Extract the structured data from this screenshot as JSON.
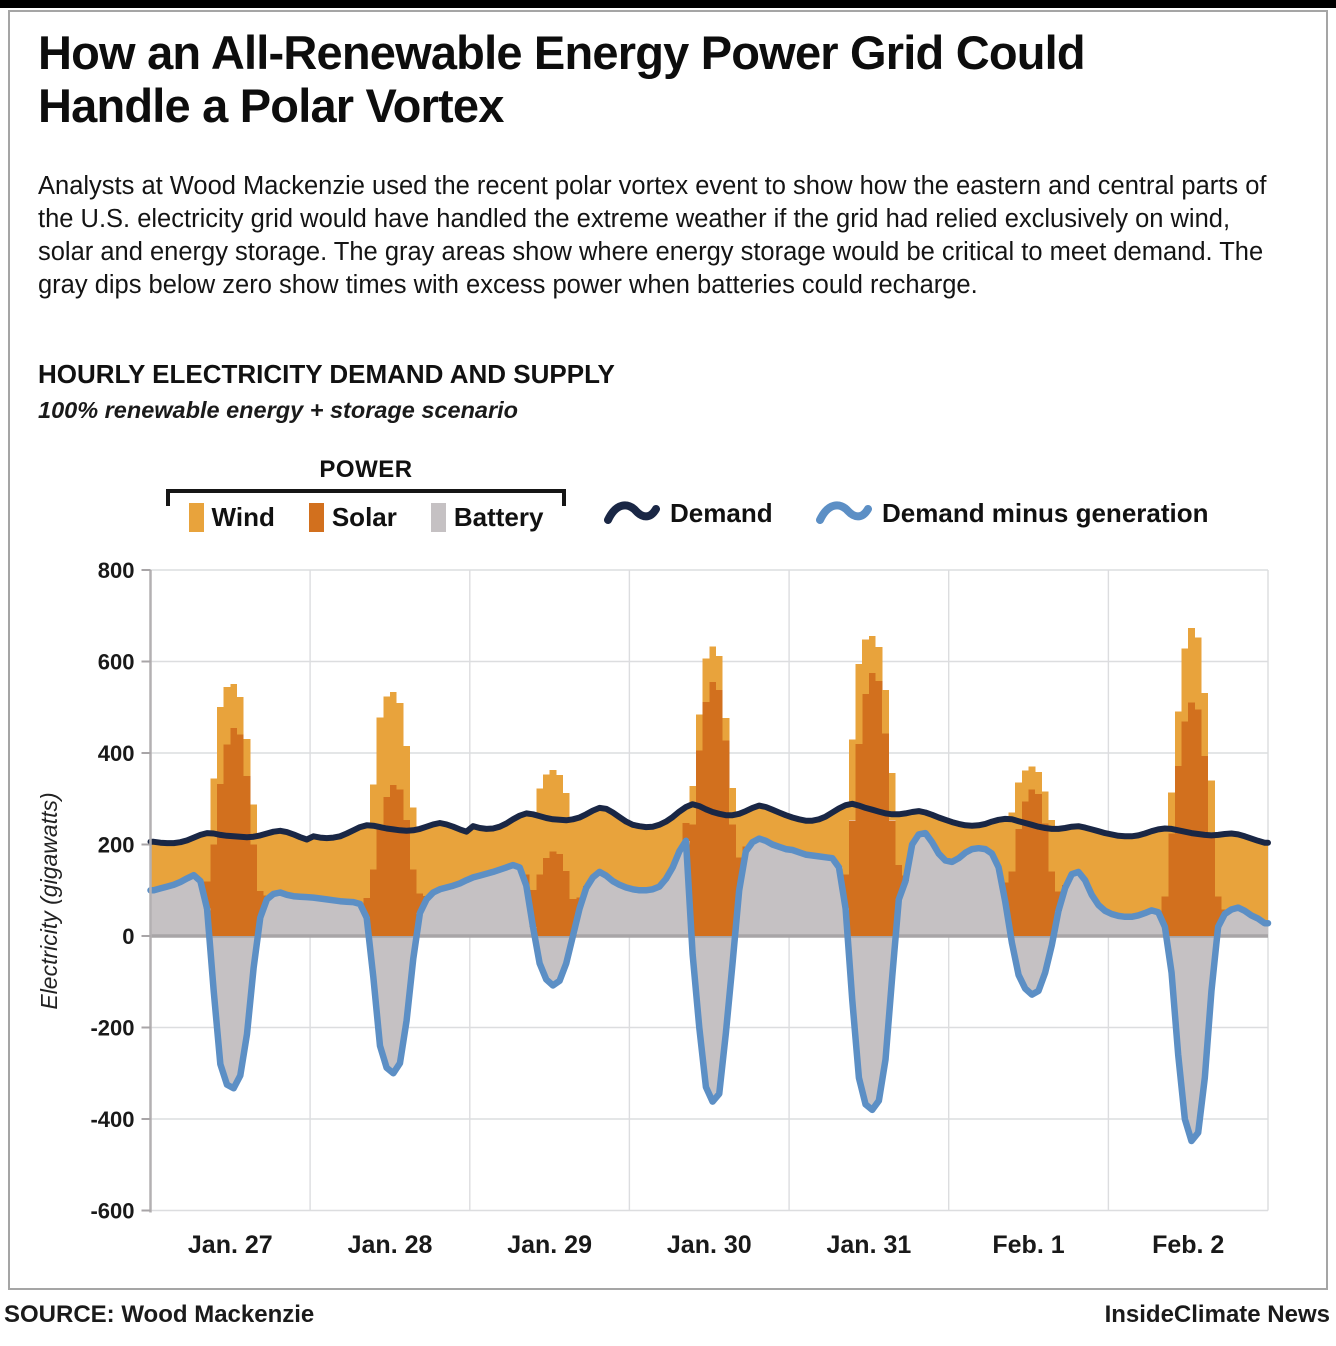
{
  "header": {
    "title": "How an All-Renewable Energy Power Grid Could Handle a Polar Vortex",
    "description": "Analysts at Wood Mackenzie used the recent polar vortex event to show how the eastern and central parts of the U.S. electricity grid would have handled the extreme weather if the grid had relied exclusively on wind, solar and energy storage. The gray areas show where energy storage would be critical to meet demand. The gray dips below zero show times with excess power when batteries could recharge."
  },
  "section": {
    "heading": "HOURLY ELECTRICITY DEMAND AND SUPPLY",
    "subheading": "100% renewable energy + storage scenario"
  },
  "legend": {
    "power_label": "POWER",
    "power_items": [
      {
        "label": "Wind",
        "color": "#e8a33c"
      },
      {
        "label": "Solar",
        "color": "#d2701e"
      },
      {
        "label": "Battery",
        "color": "#c5c1c3"
      }
    ],
    "line_items": [
      {
        "label": "Demand",
        "color": "#1a2745"
      },
      {
        "label": "Demand minus generation",
        "color": "#5c8fc5"
      }
    ]
  },
  "footer": {
    "source": "SOURCE: Wood Mackenzie",
    "credit": "InsideClimate News"
  },
  "chart_data": {
    "type": "combo: stacked hourly bars (battery, solar, wind) with overlaid lines (demand, demand minus generation)",
    "title": "HOURLY ELECTRICITY DEMAND AND SUPPLY",
    "subtitle": "100% renewable energy + storage scenario",
    "ylabel": "Electricity (gigawatts)",
    "ylim": [
      -600,
      800
    ],
    "yticks": [
      800,
      600,
      400,
      200,
      0,
      -200,
      -400,
      -600
    ],
    "x_categories": [
      "Jan. 27",
      "Jan. 28",
      "Jan. 29",
      "Jan. 30",
      "Jan. 31",
      "Feb. 1",
      "Feb. 2"
    ],
    "hours_per_day": 24,
    "grid": true,
    "legend_position": "top",
    "colors": {
      "wind": "#e8a33c",
      "solar": "#d2701e",
      "battery": "#c5c1c3",
      "demand": "#1a2745",
      "demand_minus_generation": "#5c8fc5"
    },
    "units": "gigawatts, hourly values",
    "series": {
      "demand": [
        206,
        204,
        203,
        203,
        205,
        209,
        215,
        221,
        225,
        224,
        221,
        219,
        218,
        217,
        216,
        217,
        220,
        224,
        228,
        230,
        227,
        222,
        216,
        211,
        218,
        215,
        214,
        215,
        218,
        224,
        231,
        238,
        242,
        241,
        238,
        235,
        233,
        231,
        230,
        231,
        234,
        239,
        244,
        247,
        244,
        239,
        233,
        228,
        240,
        236,
        234,
        235,
        239,
        246,
        255,
        263,
        268,
        266,
        262,
        258,
        255,
        254,
        253,
        255,
        259,
        266,
        274,
        280,
        278,
        270,
        260,
        250,
        243,
        240,
        238,
        239,
        243,
        250,
        260,
        272,
        282,
        288,
        284,
        277,
        271,
        267,
        264,
        264,
        267,
        273,
        280,
        285,
        282,
        276,
        270,
        264,
        259,
        255,
        252,
        252,
        255,
        261,
        270,
        279,
        286,
        289,
        285,
        280,
        276,
        272,
        268,
        266,
        266,
        268,
        271,
        273,
        270,
        265,
        259,
        254,
        249,
        245,
        242,
        241,
        242,
        245,
        250,
        254,
        256,
        255,
        251,
        247,
        243,
        239,
        236,
        234,
        234,
        236,
        239,
        240,
        237,
        233,
        229,
        225,
        222,
        219,
        218,
        218,
        220,
        224,
        229,
        233,
        235,
        234,
        231,
        228,
        225,
        223,
        221,
        220,
        221,
        223,
        224,
        222,
        218,
        213,
        208,
        204
      ],
      "demand_minus_generation": [
        100,
        104,
        108,
        112,
        118,
        126,
        133,
        120,
        60,
        -120,
        -280,
        -325,
        -333,
        -305,
        -215,
        -70,
        40,
        80,
        92,
        95,
        90,
        87,
        86,
        85,
        84,
        82,
        80,
        78,
        76,
        75,
        74,
        70,
        40,
        -90,
        -240,
        -288,
        -300,
        -278,
        -185,
        -50,
        50,
        80,
        95,
        102,
        106,
        110,
        115,
        122,
        128,
        132,
        136,
        140,
        145,
        150,
        155,
        150,
        110,
        20,
        -60,
        -95,
        -108,
        -98,
        -60,
        0,
        60,
        105,
        128,
        140,
        132,
        120,
        112,
        106,
        102,
        100,
        100,
        102,
        108,
        125,
        150,
        185,
        208,
        -40,
        -200,
        -330,
        -362,
        -345,
        -212,
        -60,
        100,
        185,
        205,
        213,
        208,
        200,
        195,
        190,
        188,
        183,
        178,
        176,
        174,
        172,
        170,
        150,
        60,
        -140,
        -310,
        -368,
        -380,
        -360,
        -270,
        -90,
        80,
        120,
        200,
        222,
        225,
        205,
        180,
        165,
        162,
        170,
        182,
        190,
        192,
        190,
        180,
        150,
        75,
        -15,
        -85,
        -115,
        -128,
        -120,
        -80,
        -20,
        55,
        105,
        135,
        140,
        122,
        90,
        68,
        55,
        48,
        44,
        42,
        42,
        45,
        50,
        56,
        52,
        20,
        -80,
        -260,
        -400,
        -448,
        -430,
        -310,
        -120,
        20,
        48,
        58,
        62,
        55,
        45,
        38,
        28
      ],
      "solar": [
        0,
        0,
        0,
        0,
        0,
        0,
        0,
        0,
        59,
        200,
        332,
        419,
        455,
        441,
        350,
        200,
        59,
        9,
        0,
        0,
        0,
        0,
        0,
        0,
        0,
        0,
        0,
        0,
        0,
        0,
        0,
        0,
        43,
        145,
        241,
        304,
        330,
        320,
        254,
        145,
        43,
        7,
        0,
        0,
        0,
        0,
        0,
        0,
        0,
        0,
        0,
        0,
        0,
        0,
        0,
        0,
        24,
        81,
        135,
        170,
        185,
        179,
        142,
        81,
        24,
        4,
        0,
        0,
        0,
        0,
        0,
        0,
        0,
        0,
        0,
        0,
        0,
        0,
        0,
        0,
        39,
        244,
        405,
        511,
        555,
        538,
        427,
        244,
        72,
        11,
        0,
        0,
        0,
        0,
        0,
        0,
        0,
        0,
        0,
        0,
        0,
        0,
        0,
        0,
        75,
        253,
        420,
        529,
        575,
        558,
        443,
        253,
        75,
        12,
        0,
        0,
        0,
        0,
        0,
        0,
        0,
        0,
        0,
        0,
        0,
        0,
        0,
        0,
        42,
        141,
        234,
        294,
        320,
        310,
        246,
        141,
        42,
        6,
        0,
        0,
        0,
        0,
        0,
        0,
        0,
        0,
        0,
        0,
        0,
        0,
        0,
        0,
        66,
        224,
        372,
        469,
        510,
        495,
        393,
        224,
        66,
        10,
        0,
        0,
        0,
        0,
        0,
        0
      ],
      "wind": [
        106,
        100,
        95,
        91,
        87,
        83,
        82,
        101,
        106,
        144,
        169,
        125,
        96,
        81,
        81,
        87,
        121,
        135,
        136,
        135,
        137,
        135,
        130,
        126,
        134,
        133,
        134,
        137,
        142,
        149,
        157,
        168,
        159,
        186,
        237,
        219,
        203,
        189,
        161,
        136,
        141,
        152,
        149,
        145,
        138,
        129,
        118,
        106,
        112,
        104,
        98,
        95,
        94,
        96,
        100,
        113,
        134,
        165,
        187,
        183,
        178,
        173,
        171,
        174,
        175,
        157,
        146,
        140,
        146,
        150,
        148,
        144,
        141,
        140,
        138,
        137,
        135,
        125,
        110,
        87,
        35,
        84,
        79,
        96,
        78,
        74,
        49,
        80,
        95,
        77,
        75,
        72,
        74,
        76,
        75,
        74,
        71,
        72,
        74,
        76,
        81,
        89,
        100,
        129,
        151,
        176,
        175,
        119,
        81,
        74,
        95,
        103,
        111,
        136,
        71,
        51,
        45,
        60,
        79,
        89,
        87,
        75,
        60,
        51,
        50,
        55,
        70,
        104,
        139,
        129,
        102,
        68,
        51,
        49,
        70,
        113,
        137,
        125,
        104,
        100,
        115,
        143,
        161,
        170,
        174,
        175,
        176,
        176,
        175,
        174,
        173,
        181,
        149,
        90,
        119,
        159,
        163,
        158,
        138,
        116,
        135,
        165,
        166,
        160,
        163,
        168,
        170,
        176
      ]
    },
    "notes": "Gray battery area equals demand minus generation (below zero = storage charging). Bars stack from max(net,0): solar then wind; bar tops meet the demand line when net is positive."
  }
}
